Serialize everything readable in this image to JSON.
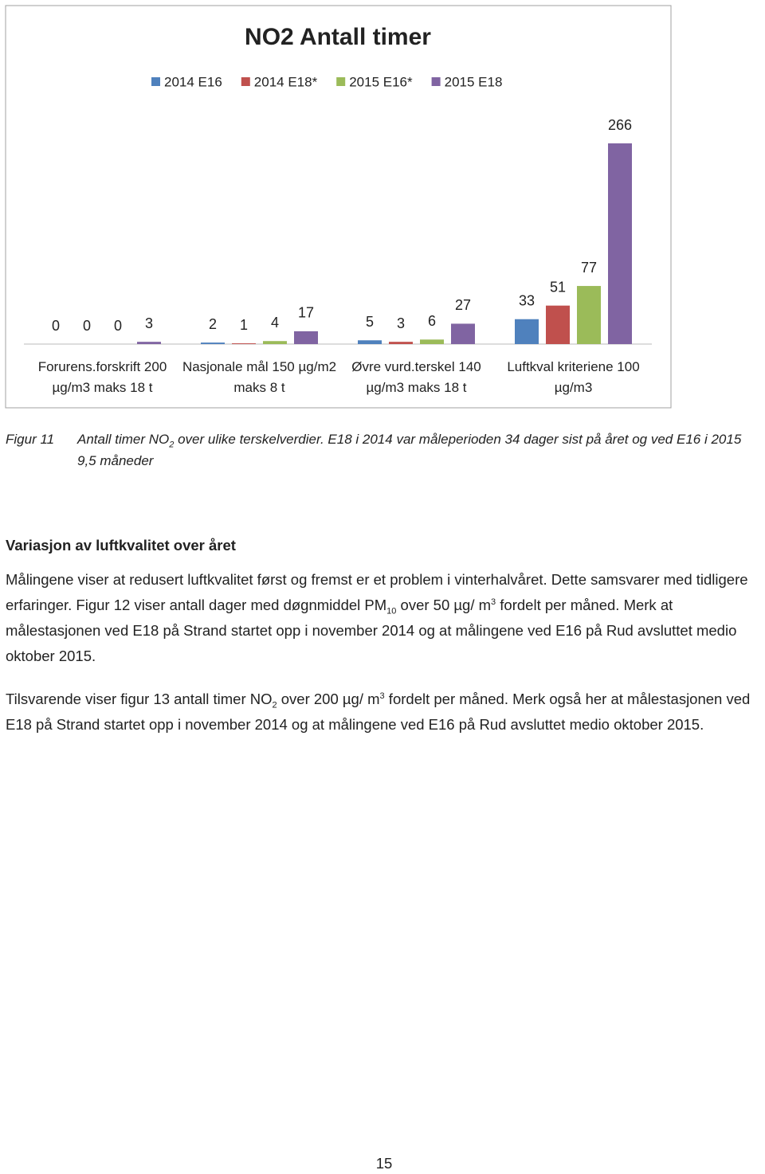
{
  "chart_data": {
    "type": "bar",
    "title": "NO2 Antall timer",
    "categories": [
      "Forurens.forskrift 200 µg/m3 maks 18 t",
      "Nasjonale mål 150 µg/m2 maks 8 t",
      "Øvre vurd.terskel 140 µg/m3 maks 18 t",
      "Luftkval kriteriene 100 µg/m3"
    ],
    "series": [
      {
        "name": "2014 E16",
        "color": "#4f81bd",
        "values": [
          0,
          2,
          5,
          33
        ]
      },
      {
        "name": "2014 E18*",
        "color": "#c0504d",
        "values": [
          0,
          1,
          3,
          51
        ]
      },
      {
        "name": "2015 E16*",
        "color": "#9bbb59",
        "values": [
          0,
          4,
          6,
          77
        ]
      },
      {
        "name": "2015 E18",
        "color": "#8064a2",
        "values": [
          3,
          17,
          27,
          266
        ]
      }
    ]
  },
  "caption": {
    "label": "Figur 11",
    "text": [
      "Antall timer NO",
      "2",
      " over ulike terskelverdier. E18 i 2014 var måleperioden 34 dager sist på året og ved E16 i 2015 9,5 måneder"
    ]
  },
  "section": {
    "heading": "Variasjon av luftkvalitet over året",
    "paragraphs": [
      [
        "Målingene viser at redusert luftkvalitet først og fremst er et problem i vinterhalvåret. Dette samsvarer med tidligere erfaringer. Figur 12 viser antall dager med døgnmiddel PM",
        "10",
        " over 50 µg/ m",
        "3",
        " fordelt per måned. Merk at målestasjonen ved E18 på Strand startet opp i november 2014 og at målingene ved E16 på Rud avsluttet medio oktober 2015."
      ],
      [
        "Tilsvarende viser figur 13 antall timer NO",
        "2",
        " over 200 µg/ m",
        "3",
        " fordelt per måned. Merk også her at målestasjonen ved E18 på Strand startet opp i november 2014 og at målingene ved E16 på Rud avsluttet medio oktober 2015."
      ]
    ]
  },
  "page_number": "15"
}
